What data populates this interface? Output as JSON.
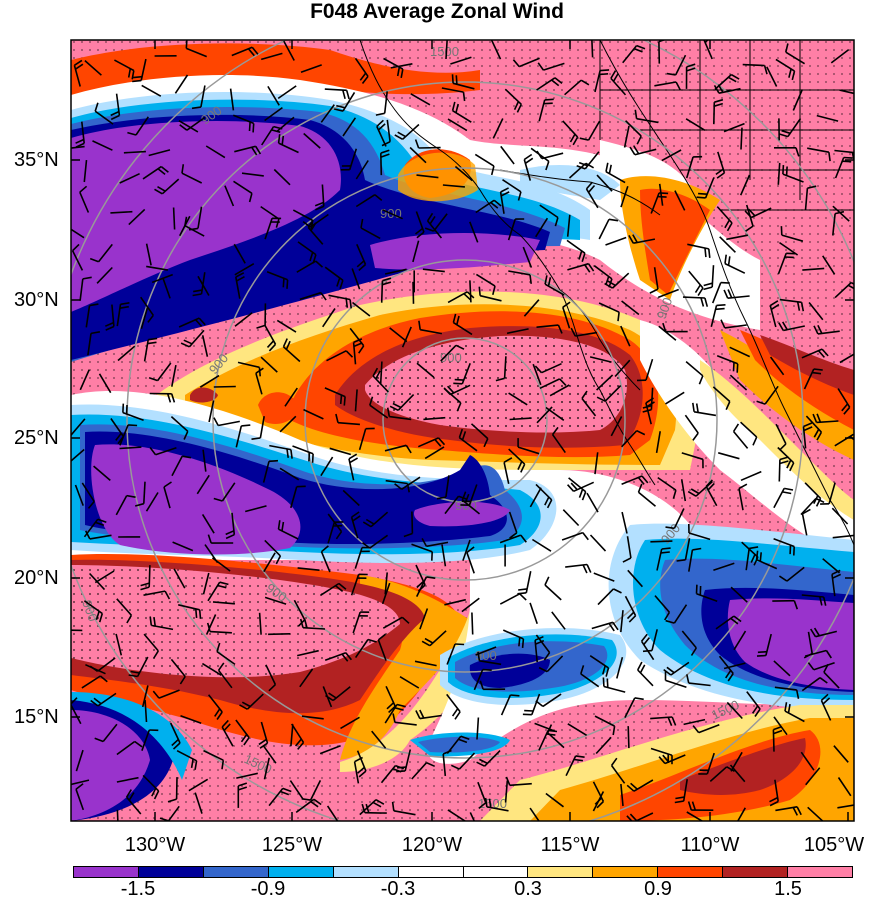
{
  "title": "F048 Average Zonal Wind",
  "lat_labels": [
    "35°N",
    "30°N",
    "25°N",
    "20°N",
    "15°N"
  ],
  "lon_labels": [
    "130°W",
    "125°W",
    "120°W",
    "115°W",
    "110°W",
    "105°W"
  ],
  "colorbar": {
    "colors": [
      "#9933cc",
      "#000099",
      "#3366cc",
      "#00b0ee",
      "#b3e0ff",
      "#ffffff",
      "#ffffff",
      "#ffe680",
      "#ffa500",
      "#ff4500",
      "#b22222",
      "#ff7fa6"
    ],
    "labels": [
      "-1.5",
      "-0.9",
      "-0.3",
      "0.3",
      "0.9",
      "1.5"
    ]
  },
  "contour_labels": [
    "900",
    "900",
    "900",
    "900",
    "900",
    "900",
    "900",
    "1500",
    "1500",
    "1500",
    "1500",
    "900",
    "900",
    "900"
  ],
  "colors": {
    "purple": "#9933cc",
    "navy": "#000099",
    "blue": "#3366cc",
    "cyan": "#00b0ee",
    "lightblue": "#b3e0ff",
    "yellow": "#ffe680",
    "orange": "#ffa500",
    "red": "#ff4500",
    "darkred": "#b22222",
    "pink": "#ff7fa6",
    "range_ring": "#999999"
  }
}
